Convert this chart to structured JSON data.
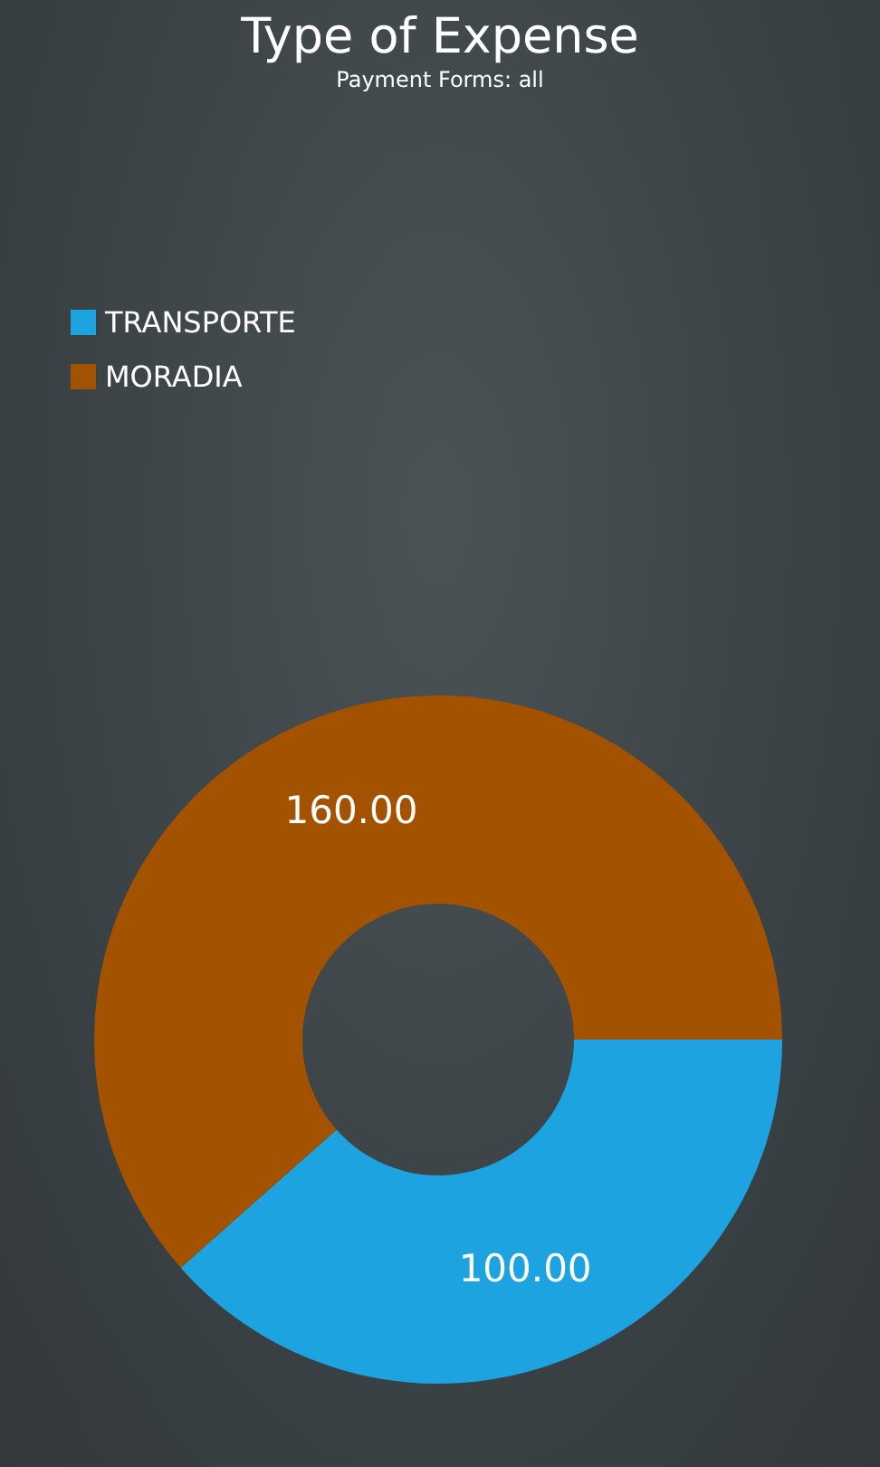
{
  "chart_data": {
    "type": "donut",
    "title": "Type of Expense",
    "subtitle": "Payment Forms: all",
    "categories": [
      "TRANSPORTE",
      "MORADIA"
    ],
    "values": [
      100,
      160
    ],
    "value_labels": [
      "100.00",
      "160.00"
    ],
    "colors": [
      "#1ca3e0",
      "#a35200"
    ],
    "legend": "top left"
  }
}
